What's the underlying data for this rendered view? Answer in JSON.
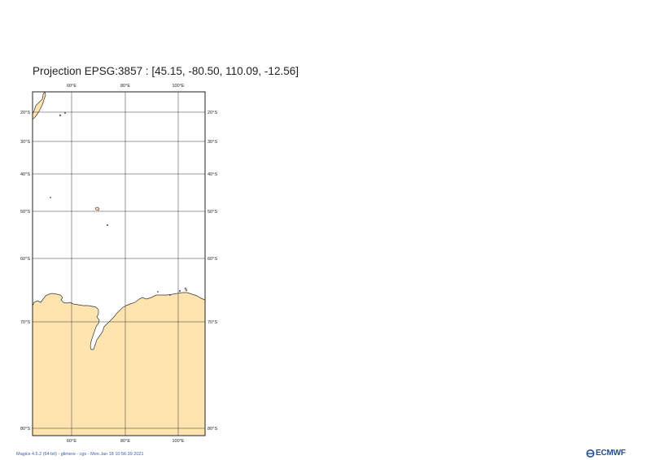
{
  "title": "Projection EPSG:3857 : [45.15, -80.50, 110.09, -12.56]",
  "map": {
    "projection": "EPSG:3857",
    "extent": {
      "lon_min": 45.15,
      "lat_min": -80.5,
      "lon_max": 110.09,
      "lat_max": -12.56
    },
    "land_color": "#ffe4b0",
    "sea_color": "#ffffff",
    "coastline_color": "#333333",
    "grid_color": "#333333",
    "lon_ticks": [
      "60°E",
      "80°E",
      "100°E"
    ],
    "lat_ticks": [
      "20°S",
      "30°S",
      "40°S",
      "50°S",
      "60°S",
      "70°S",
      "80°S"
    ]
  },
  "footer": "Magics 4.5.2 (64 bit) - glimere - cgs - Mon Jan 18 10:56:39 2021",
  "logo": {
    "text": "ECMWF",
    "icon": "ecmwf-logo-icon",
    "color": "#1f4d93"
  }
}
